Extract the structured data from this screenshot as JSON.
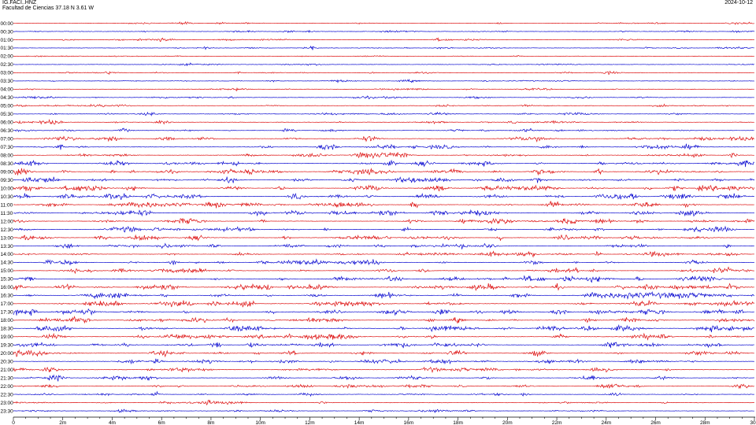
{
  "header": {
    "station": "IG.FACI..HNZ",
    "location": "Facultad de Ciencias  37.18 N 3.61 W",
    "date": "2024-10-12"
  },
  "chart_data": {
    "type": "line",
    "title": "IG.FACI..HNZ",
    "subtitle": "Facultad de Ciencias  37.18 N 3.61 W",
    "row_labels": [
      "00:00",
      "00:30",
      "01:00",
      "01:30",
      "02:00",
      "02:30",
      "03:00",
      "03:30",
      "04:00",
      "04:30",
      "05:00",
      "05:30",
      "06:00",
      "06:30",
      "07:00",
      "07:30",
      "08:00",
      "08:30",
      "09:00",
      "09:30",
      "10:00",
      "10:30",
      "11:00",
      "11:30",
      "12:00",
      "12:30",
      "13:00",
      "13:30",
      "14:00",
      "14:30",
      "15:00",
      "15:30",
      "16:00",
      "16:30",
      "17:00",
      "17:30",
      "18:00",
      "18:30",
      "19:00",
      "19:30",
      "20:00",
      "20:30",
      "21:00",
      "21:30",
      "22:00",
      "22:30",
      "23:00",
      "23:30"
    ],
    "row_colors": [
      "#dd1111",
      "#0a0ad0"
    ],
    "row_activity": [
      0.25,
      0.3,
      0.3,
      0.25,
      0.2,
      0.2,
      0.25,
      0.25,
      0.25,
      0.3,
      0.35,
      0.4,
      0.4,
      0.45,
      0.55,
      0.6,
      0.65,
      0.75,
      0.8,
      0.8,
      0.85,
      0.85,
      0.85,
      0.75,
      0.7,
      0.7,
      0.7,
      0.7,
      0.65,
      0.7,
      0.7,
      0.8,
      0.85,
      0.9,
      0.9,
      0.9,
      0.85,
      0.85,
      0.85,
      0.75,
      0.75,
      0.7,
      0.6,
      0.55,
      0.5,
      0.45,
      0.35,
      0.35
    ],
    "x_ticks": [
      "0",
      "2m",
      "4m",
      "6m",
      "8m",
      "10m",
      "12m",
      "14m",
      "16m",
      "18m",
      "20m",
      "22m",
      "24m",
      "26m",
      "28m",
      "30"
    ],
    "xlim": [
      0,
      30
    ],
    "x_unit": "minutes",
    "grid": false
  }
}
